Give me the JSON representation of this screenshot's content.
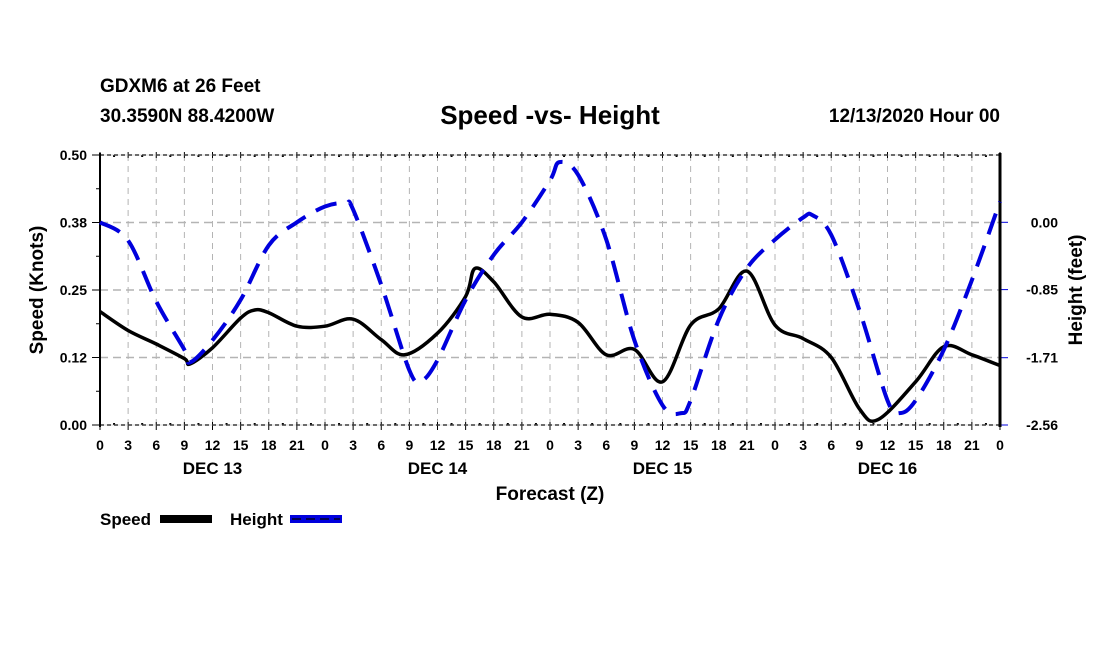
{
  "header": {
    "station": "GDXM6 at 26 Feet",
    "coords": "30.3590N 88.4200W",
    "title": "Speed -vs- Height",
    "datetime": "12/13/2020 Hour 00"
  },
  "chart_data": {
    "type": "line",
    "title": "Speed -vs- Height",
    "xlabel": "Forecast (Z)",
    "ylabel": "Speed (Knots)",
    "y2label": "Height (feet)",
    "xlim": [
      0,
      96
    ],
    "ylim": [
      0.0,
      0.5
    ],
    "y2lim": [
      -2.56,
      0.85
    ],
    "grid": true,
    "legend_position": "bottom-left",
    "x_tick_labels": [
      "0",
      "3",
      "6",
      "9",
      "12",
      "15",
      "18",
      "21",
      "0",
      "3",
      "6",
      "9",
      "12",
      "15",
      "18",
      "21",
      "0",
      "3",
      "6",
      "9",
      "12",
      "15",
      "18",
      "21",
      "0",
      "3",
      "6",
      "9",
      "12",
      "15",
      "18",
      "21",
      "0"
    ],
    "day_labels": [
      {
        "label": "DEC 13",
        "hour": 12
      },
      {
        "label": "DEC 14",
        "hour": 36
      },
      {
        "label": "DEC 15",
        "hour": 60
      },
      {
        "label": "DEC 16",
        "hour": 84
      }
    ],
    "y_tick_labels": [
      "0.00",
      "0.12",
      "0.25",
      "0.38",
      "0.50"
    ],
    "y_ticks": [
      0.0,
      0.125,
      0.25,
      0.375,
      0.5
    ],
    "y2_tick_labels": [
      "-2.56",
      "-1.71",
      "-0.85",
      "0.00"
    ],
    "y2_ticks": [
      -2.56,
      -1.71,
      -0.85,
      0.0
    ],
    "series": [
      {
        "name": "Speed",
        "axis": "left",
        "color": "#000000",
        "style": "solid",
        "points": [
          [
            0,
            0.21
          ],
          [
            3,
            0.175
          ],
          [
            6,
            0.15
          ],
          [
            9,
            0.123
          ],
          [
            9.6,
            0.113
          ],
          [
            12,
            0.143
          ],
          [
            15,
            0.198
          ],
          [
            16.5,
            0.213
          ],
          [
            18,
            0.208
          ],
          [
            21,
            0.183
          ],
          [
            24,
            0.183
          ],
          [
            27,
            0.196
          ],
          [
            30,
            0.158
          ],
          [
            32.5,
            0.13
          ],
          [
            36,
            0.17
          ],
          [
            39,
            0.238
          ],
          [
            40,
            0.29
          ],
          [
            42,
            0.265
          ],
          [
            45,
            0.2
          ],
          [
            48,
            0.205
          ],
          [
            51,
            0.19
          ],
          [
            54,
            0.13
          ],
          [
            57,
            0.14
          ],
          [
            60,
            0.08
          ],
          [
            63,
            0.185
          ],
          [
            66,
            0.215
          ],
          [
            69,
            0.285
          ],
          [
            72,
            0.185
          ],
          [
            75,
            0.16
          ],
          [
            78,
            0.125
          ],
          [
            81,
            0.03
          ],
          [
            83,
            0.01
          ],
          [
            87,
            0.08
          ],
          [
            90,
            0.145
          ],
          [
            93,
            0.13
          ],
          [
            96,
            0.11
          ]
        ]
      },
      {
        "name": "Height",
        "axis": "right",
        "color": "#0000dd",
        "style": "dashed",
        "points": [
          [
            0,
            0.0
          ],
          [
            3,
            -0.23
          ],
          [
            6,
            -1.0
          ],
          [
            9,
            -1.61
          ],
          [
            9.6,
            -1.77
          ],
          [
            12,
            -1.49
          ],
          [
            15,
            -0.98
          ],
          [
            18,
            -0.29
          ],
          [
            21,
            0.0
          ],
          [
            24,
            0.2
          ],
          [
            26.2,
            0.24
          ],
          [
            27,
            0.16
          ],
          [
            30,
            -0.79
          ],
          [
            33,
            -1.87
          ],
          [
            34.3,
            -2.0
          ],
          [
            36,
            -1.74
          ],
          [
            39,
            -0.98
          ],
          [
            42,
            -0.41
          ],
          [
            45,
            0.0
          ],
          [
            48,
            0.53
          ],
          [
            49,
            0.76
          ],
          [
            51,
            0.6
          ],
          [
            54,
            -0.22
          ],
          [
            57,
            -1.49
          ],
          [
            60,
            -2.31
          ],
          [
            62,
            -2.41
          ],
          [
            63,
            -2.25
          ],
          [
            66,
            -1.23
          ],
          [
            69,
            -0.58
          ],
          [
            72,
            -0.22
          ],
          [
            75,
            0.06
          ],
          [
            76,
            0.09
          ],
          [
            78,
            -0.16
          ],
          [
            81,
            -1.11
          ],
          [
            84,
            -2.25
          ],
          [
            85.3,
            -2.41
          ],
          [
            87,
            -2.25
          ],
          [
            90,
            -1.61
          ],
          [
            93,
            -0.73
          ],
          [
            96,
            0.26
          ]
        ]
      }
    ]
  },
  "legend": [
    {
      "label": "Speed",
      "color": "#000000",
      "style": "solid"
    },
    {
      "label": "Height",
      "color": "#0000dd",
      "style": "dashed"
    }
  ]
}
